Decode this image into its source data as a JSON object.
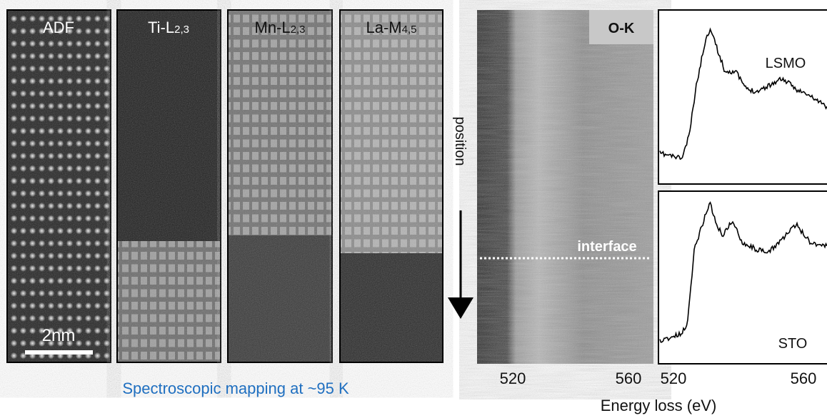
{
  "panels": [
    {
      "label": "ADF"
    },
    {
      "label": "Ti-L",
      "subscript": "2,3"
    },
    {
      "label": "Mn-L",
      "subscript": "2,3"
    },
    {
      "label": "La-M",
      "subscript": "4,5"
    }
  ],
  "scale_bar": "2nm",
  "caption": "Spectroscopic mapping at ~95 K",
  "map": {
    "label": "O-K",
    "position_label": "position",
    "interface_label": "interface"
  },
  "spectra": [
    {
      "label": "LSMO"
    },
    {
      "label": "STO"
    }
  ],
  "x_axis": {
    "ticks": [
      "520",
      "560",
      "520",
      "560"
    ],
    "label": "Energy loss (eV)"
  }
}
